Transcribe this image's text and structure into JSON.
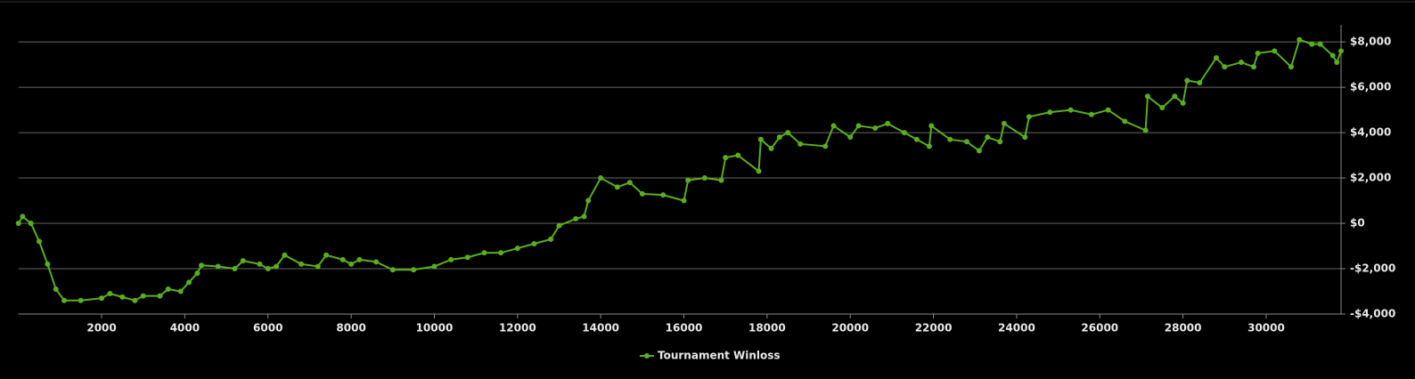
{
  "chart_data": {
    "type": "line",
    "series": [
      {
        "name": "Tournament Winloss",
        "color": "#5aad1e",
        "x": [
          0,
          100,
          300,
          500,
          700,
          900,
          1100,
          1500,
          2000,
          2200,
          2500,
          2800,
          3000,
          3400,
          3600,
          3900,
          4100,
          4300,
          4400,
          4800,
          5200,
          5400,
          5800,
          6000,
          6200,
          6400,
          6800,
          7200,
          7400,
          7800,
          8000,
          8200,
          8600,
          9000,
          9500,
          10000,
          10400,
          10800,
          11200,
          11600,
          12000,
          12400,
          12800,
          13000,
          13400,
          13600,
          13700,
          14000,
          14400,
          14700,
          15000,
          15500,
          16000,
          16100,
          16500,
          16900,
          17000,
          17300,
          17800,
          17850,
          18100,
          18300,
          18500,
          18800,
          19400,
          19600,
          20000,
          20200,
          20600,
          20900,
          21300,
          21600,
          21900,
          21950,
          22400,
          22800,
          23100,
          23300,
          23600,
          23700,
          24200,
          24300,
          24800,
          25300,
          25800,
          26200,
          26600,
          27100,
          27150,
          27500,
          27800,
          28000,
          28100,
          28400,
          28800,
          29000,
          29400,
          29700,
          29800,
          30200,
          30600,
          30800,
          31100,
          31300,
          31600,
          31700,
          31800
        ],
        "values": [
          0,
          300,
          0,
          -800,
          -1800,
          -2900,
          -3400,
          -3400,
          -3300,
          -3100,
          -3250,
          -3400,
          -3200,
          -3200,
          -2900,
          -3000,
          -2600,
          -2200,
          -1850,
          -1900,
          -2000,
          -1650,
          -1800,
          -2000,
          -1900,
          -1400,
          -1800,
          -1900,
          -1400,
          -1600,
          -1800,
          -1600,
          -1700,
          -2050,
          -2050,
          -1900,
          -1600,
          -1500,
          -1300,
          -1300,
          -1100,
          -900,
          -700,
          -100,
          200,
          300,
          1000,
          2000,
          1600,
          1800,
          1300,
          1250,
          1000,
          1900,
          2000,
          1900,
          2900,
          3000,
          2300,
          3700,
          3300,
          3800,
          4000,
          3500,
          3400,
          4300,
          3800,
          4300,
          4200,
          4400,
          4000,
          3700,
          3400,
          4300,
          3700,
          3600,
          3200,
          3800,
          3600,
          4400,
          3800,
          4700,
          4900,
          5000,
          4800,
          5000,
          4500,
          4100,
          5600,
          5100,
          5600,
          5300,
          6300,
          6200,
          7300,
          6900,
          7100,
          6900,
          7500,
          7600,
          6900,
          8100,
          7900,
          7900,
          7400,
          7100,
          7600
        ]
      }
    ],
    "xlim": [
      0,
      31800
    ],
    "xticks": [
      2000,
      4000,
      6000,
      8000,
      10000,
      12000,
      14000,
      16000,
      18000,
      20000,
      22000,
      24000,
      26000,
      28000,
      30000
    ],
    "ylim": [
      -4000,
      8750
    ],
    "yticks": [
      {
        "value": -4000,
        "label": "-$4,000"
      },
      {
        "value": -2000,
        "label": "-$2,000"
      },
      {
        "value": 0,
        "label": "$0"
      },
      {
        "value": 2000,
        "label": "$2,000"
      },
      {
        "value": 4000,
        "label": "$4,000"
      },
      {
        "value": 6000,
        "label": "$6,000"
      },
      {
        "value": 8000,
        "label": "$8,000"
      }
    ],
    "grid": true
  }
}
